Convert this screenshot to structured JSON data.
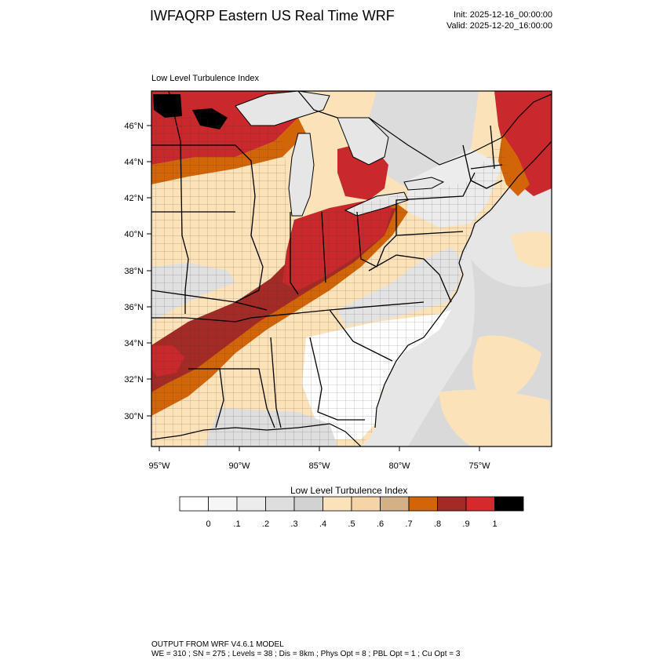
{
  "header": {
    "title": "IWFAQRP Eastern US Real Time WRF",
    "init": "Init: 2025-12-16_00:00:00",
    "valid": "Valid: 2025-12-20_16:00:00"
  },
  "panel": {
    "title": "Low Level Turbulence Index"
  },
  "map": {
    "lat_labels": [
      "46°N",
      "44°N",
      "42°N",
      "40°N",
      "38°N",
      "36°N",
      "34°N",
      "32°N",
      "30°N"
    ],
    "lon_labels": [
      "95°W",
      "90°W",
      "85°W",
      "80°W",
      "75°W"
    ],
    "land_color": "#fbe2b9",
    "water_color": "#e8e8e8"
  },
  "colorbar": {
    "title": "Low Level Turbulence Index",
    "colors": [
      "#ffffff",
      "#f6f6f6",
      "#ececec",
      "#dedede",
      "#d2d2d2",
      "#fbe2b9",
      "#f5d4a8",
      "#d3b085",
      "#d26508",
      "#a32a25",
      "#d42a2e",
      "#000000"
    ],
    "ticks": [
      "0",
      ".1",
      ".2",
      ".3",
      ".4",
      ".5",
      ".6",
      ".7",
      ".8",
      ".9",
      "1"
    ]
  },
  "footer": {
    "line1": "OUTPUT FROM WRF V4.6.1 MODEL",
    "line2": "WE = 310 ; SN = 275 ; Levels = 38 ; Dis = 8km ; Phys Opt = 8 ; PBL Opt = 1 ; Cu Opt = 3"
  }
}
